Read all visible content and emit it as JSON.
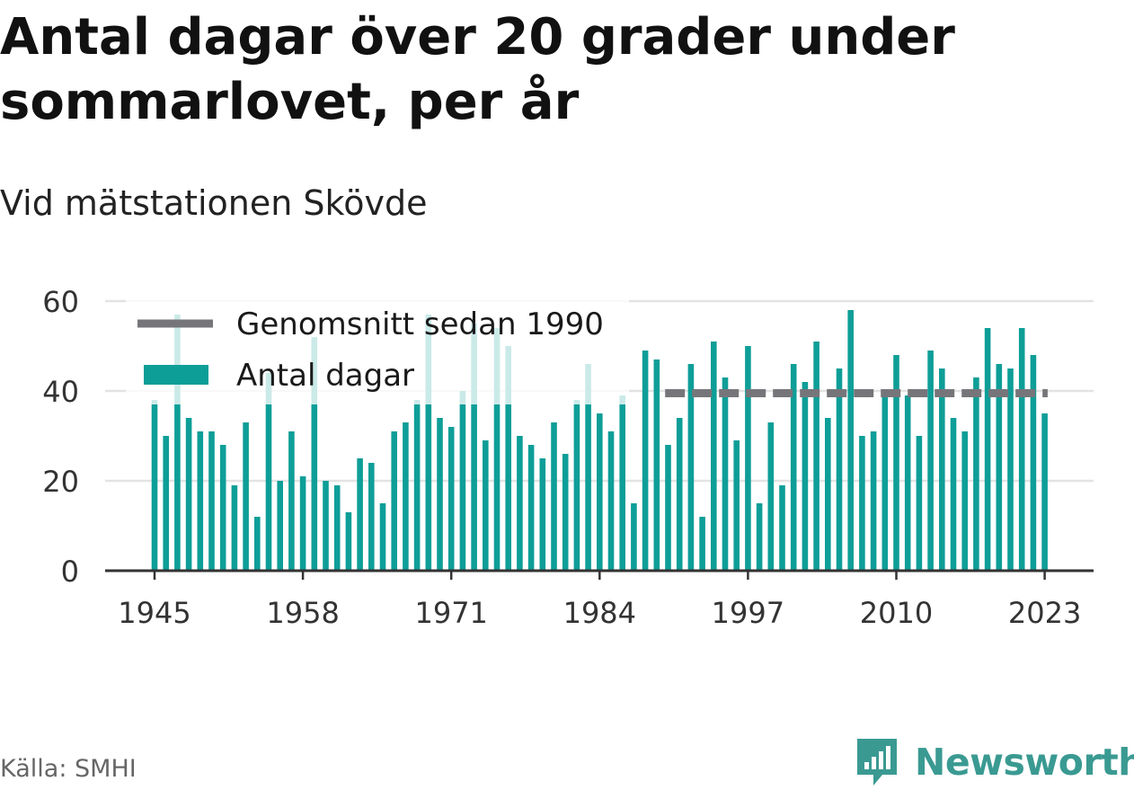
{
  "header": {
    "title": "Antal dagar över 20 grader under sommarlovet, per år",
    "subtitle": "Vid mätstationen Skövde"
  },
  "footer": {
    "source": "Källa: SMHI",
    "brand": "Newsworthy"
  },
  "colors": {
    "bar": "#0e9e98",
    "average_line": "#76767a",
    "grid": "#e3e3e3",
    "axis": "#333333",
    "brand": "#3a9a92"
  },
  "icons": {
    "brand_logo": "newsworthy-logo-icon"
  },
  "chart_data": {
    "type": "bar",
    "title": "Antal dagar över 20 grader under sommarlovet, per år",
    "subtitle": "Vid mätstationen Skövde",
    "x": [
      1945,
      1946,
      1947,
      1948,
      1949,
      1950,
      1951,
      1952,
      1953,
      1954,
      1955,
      1956,
      1957,
      1958,
      1959,
      1960,
      1961,
      1962,
      1963,
      1964,
      1965,
      1966,
      1967,
      1968,
      1969,
      1970,
      1971,
      1972,
      1973,
      1974,
      1975,
      1976,
      1977,
      1978,
      1979,
      1980,
      1981,
      1982,
      1983,
      1984,
      1985,
      1986,
      1987,
      1988,
      1989,
      1990,
      1991,
      1992,
      1993,
      1994,
      1995,
      1996,
      1997,
      1998,
      1999,
      2000,
      2001,
      2002,
      2003,
      2004,
      2005,
      2006,
      2007,
      2008,
      2009,
      2010,
      2011,
      2012,
      2013,
      2014,
      2015,
      2016,
      2017,
      2018,
      2019,
      2020,
      2021,
      2022,
      2023
    ],
    "series": [
      {
        "name": "Antal dagar",
        "values": [
          38,
          30,
          57,
          34,
          31,
          31,
          28,
          19,
          33,
          12,
          44,
          20,
          31,
          21,
          52,
          20,
          19,
          13,
          25,
          24,
          15,
          31,
          33,
          38,
          57,
          34,
          32,
          40,
          55,
          29,
          54,
          50,
          30,
          28,
          25,
          33,
          26,
          38,
          46,
          35,
          31,
          39,
          15,
          49,
          47,
          28,
          34,
          46,
          12,
          51,
          43,
          29,
          50,
          15,
          33,
          19,
          46,
          42,
          51,
          34,
          45,
          58,
          30,
          31,
          40,
          48,
          39,
          30,
          49,
          45,
          34,
          31,
          43,
          54,
          46,
          45,
          54,
          48,
          35
        ]
      }
    ],
    "reference_lines": [
      {
        "name": "Genomsnitt sedan 1990",
        "value": 39.5,
        "from": 1990,
        "to": 2023,
        "style": "dashed"
      }
    ],
    "xticks": [
      "1945",
      "1958",
      "1971",
      "1984",
      "1997",
      "2010",
      "2023"
    ],
    "yticks": [
      "0",
      "20",
      "40",
      "60"
    ],
    "ylim": [
      0,
      60
    ],
    "grid": true,
    "legend": {
      "position": "top-left",
      "entries": [
        "Genomsnitt sedan 1990",
        "Antal dagar"
      ]
    }
  }
}
